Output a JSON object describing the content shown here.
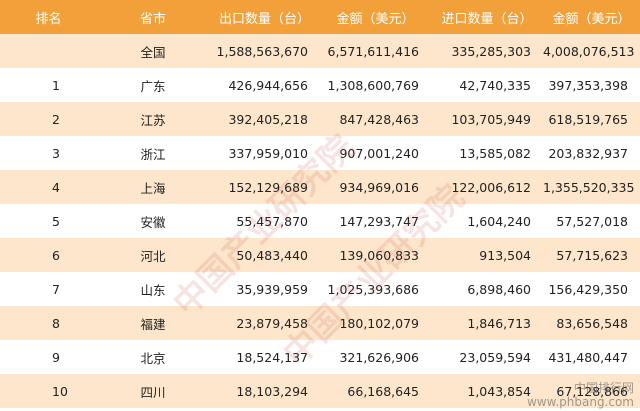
{
  "table": {
    "headers": [
      "排名",
      "省市",
      "出口数量（台）",
      "金额（美元）",
      "进口数量（台）",
      "金额（美元）"
    ],
    "rows": [
      {
        "rank": "",
        "province": "全国",
        "export_qty": "1,588,563,670",
        "export_amount": "6,571,611,416",
        "import_qty": "335,285,303",
        "import_amount": "4,008,076,513"
      },
      {
        "rank": "1",
        "province": "广东",
        "export_qty": "426,944,656",
        "export_amount": "1,308,600,769",
        "import_qty": "42,740,335",
        "import_amount": "397,353,398"
      },
      {
        "rank": "2",
        "province": "江苏",
        "export_qty": "392,405,218",
        "export_amount": "847,428,463",
        "import_qty": "103,705,949",
        "import_amount": "618,519,765"
      },
      {
        "rank": "3",
        "province": "浙江",
        "export_qty": "337,959,010",
        "export_amount": "907,001,240",
        "import_qty": "13,585,082",
        "import_amount": "203,832,937"
      },
      {
        "rank": "4",
        "province": "上海",
        "export_qty": "152,129,689",
        "export_amount": "934,969,016",
        "import_qty": "122,006,612",
        "import_amount": "1,355,520,335"
      },
      {
        "rank": "5",
        "province": "安徽",
        "export_qty": "55,457,870",
        "export_amount": "147,293,747",
        "import_qty": "1,604,240",
        "import_amount": "57,527,018"
      },
      {
        "rank": "6",
        "province": "河北",
        "export_qty": "50,483,440",
        "export_amount": "139,060,833",
        "import_qty": "913,504",
        "import_amount": "57,715,623"
      },
      {
        "rank": "7",
        "province": "山东",
        "export_qty": "35,939,959",
        "export_amount": "1,025,393,686",
        "import_qty": "6,898,460",
        "import_amount": "156,429,350"
      },
      {
        "rank": "8",
        "province": "福建",
        "export_qty": "23,879,458",
        "export_amount": "180,102,079",
        "import_qty": "1,846,713",
        "import_amount": "83,656,548"
      },
      {
        "rank": "9",
        "province": "北京",
        "export_qty": "18,524,137",
        "export_amount": "321,626,906",
        "import_qty": "23,059,594",
        "import_amount": "431,480,447"
      },
      {
        "rank": "10",
        "province": "四川",
        "export_qty": "18,103,294",
        "export_amount": "66,168,645",
        "import_qty": "1,043,854",
        "import_amount": "67,128,866"
      }
    ]
  },
  "watermark": {
    "text": "中国产业研究院"
  },
  "corner_logo": {
    "line1": "中国排行网",
    "line2": "www.phbang.com"
  },
  "colors": {
    "header_bg": "#f2a03a",
    "stripe": "#fde6cc",
    "header_text": "#ffffff"
  }
}
